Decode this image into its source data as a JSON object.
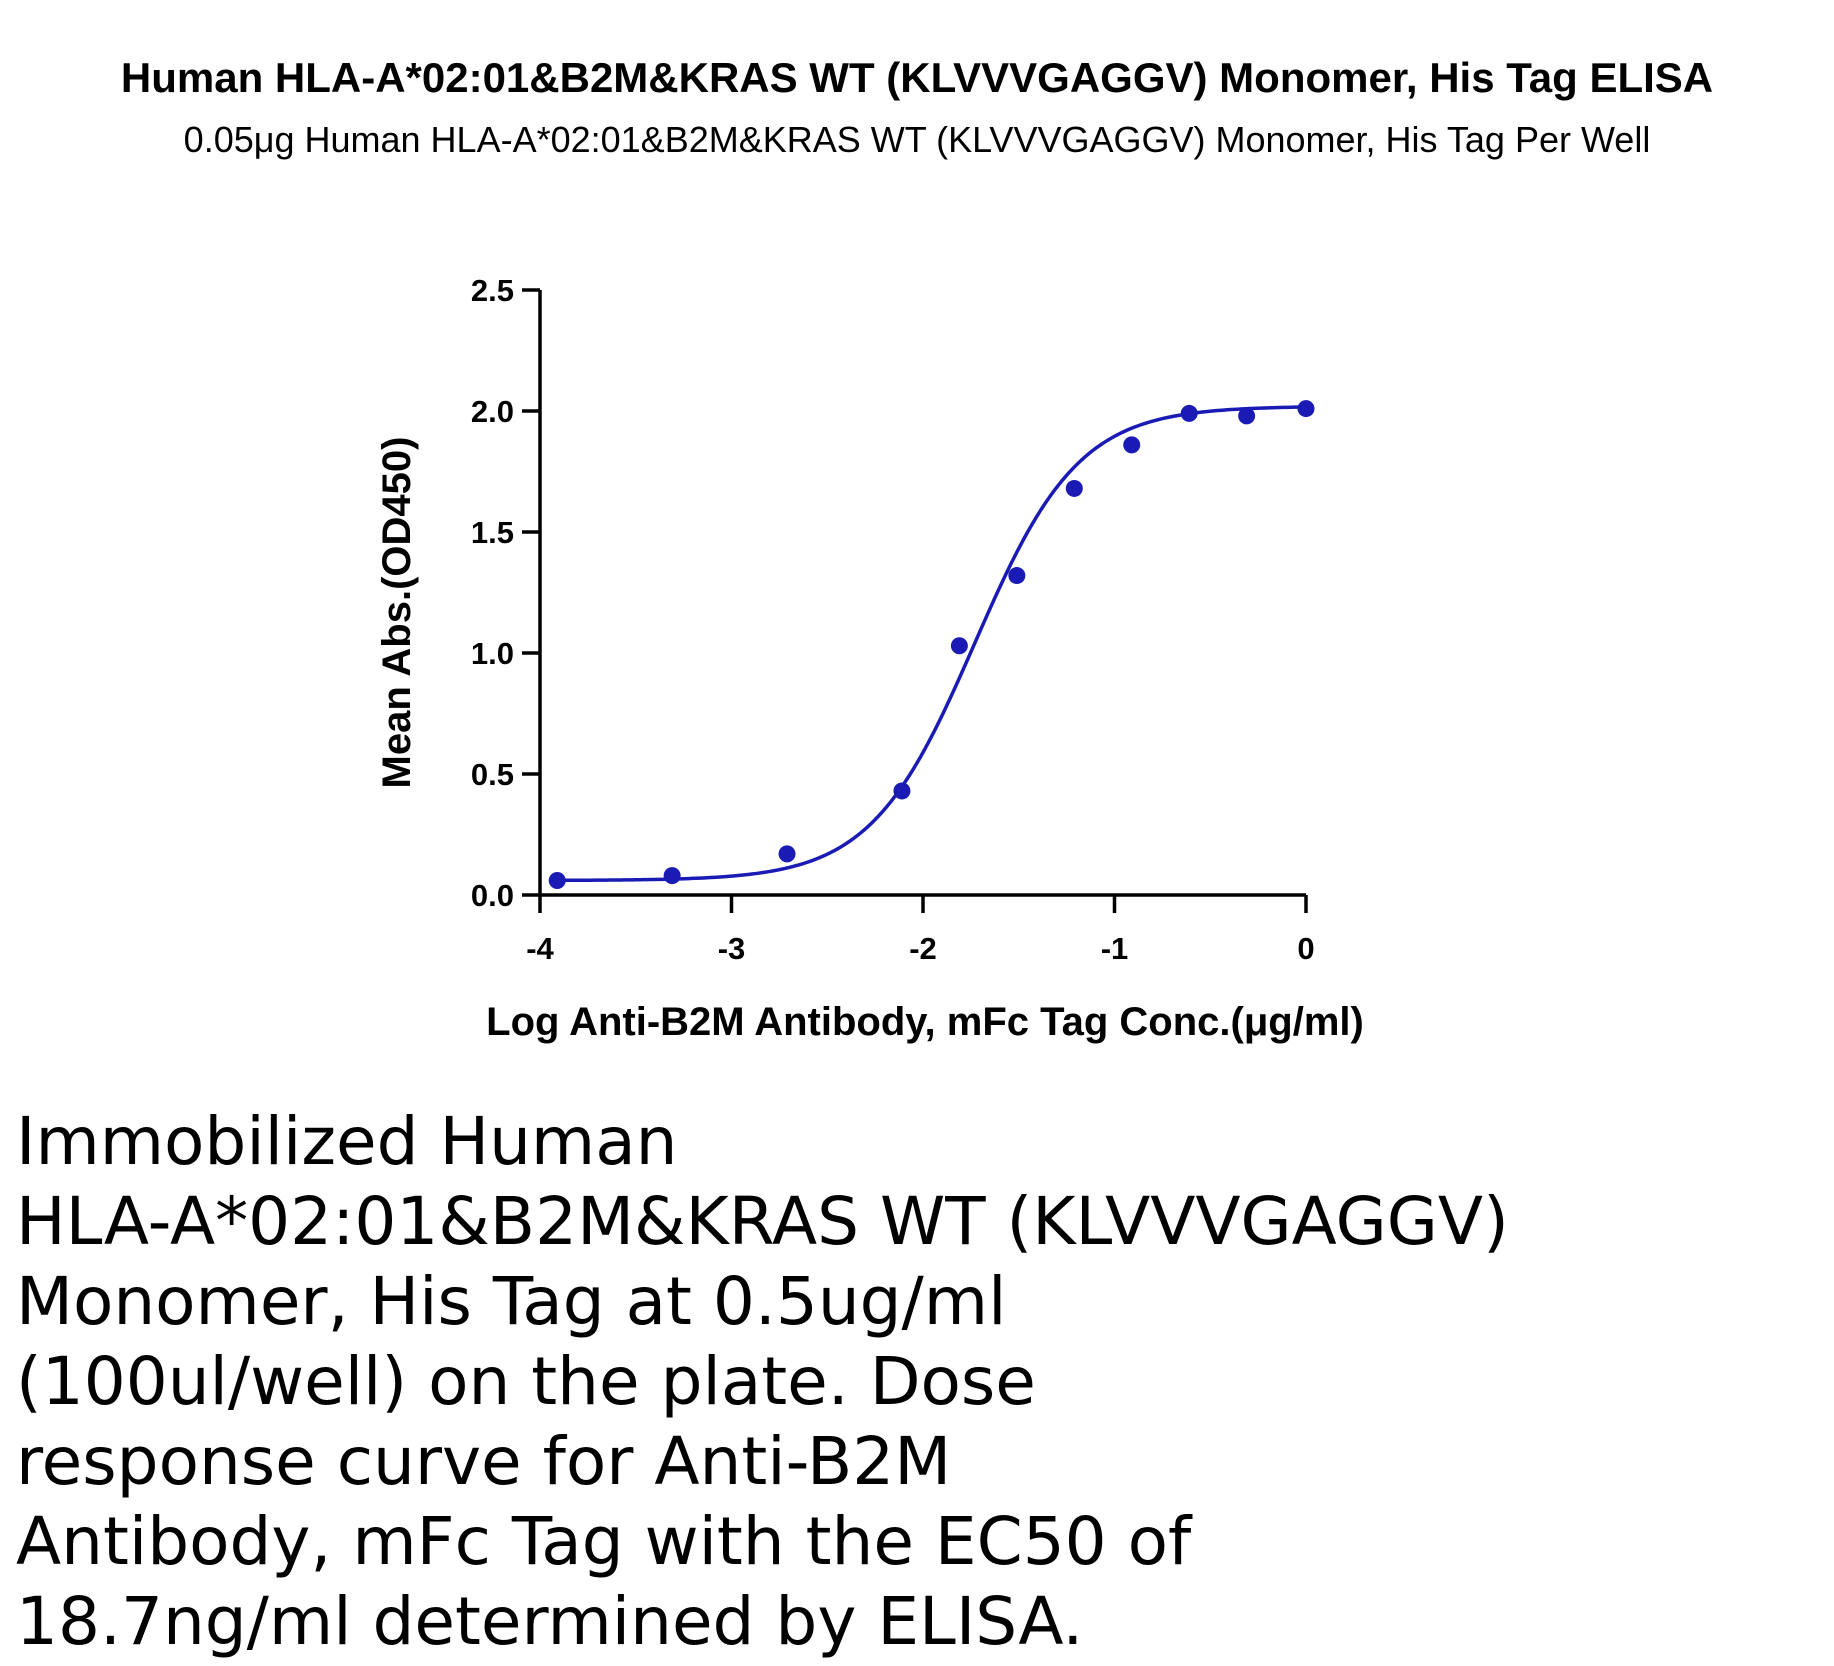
{
  "chart_data": {
    "type": "scatter",
    "title": "Human HLA-A*02:01&B2M&KRAS WT (KLVVVGAGGV) Monomer, His Tag ELISA",
    "subtitle": "0.05μg Human HLA-A*02:01&B2M&KRAS WT (KLVVVGAGGV) Monomer, His Tag Per Well",
    "xlabel": "Log Anti-B2M Antibody, mFc Tag Conc.(μg/ml)",
    "ylabel": "Mean Abs.(OD450)",
    "xlim": [
      -4,
      0
    ],
    "ylim": [
      0,
      2.5
    ],
    "x_ticks": [
      "-4",
      "-3",
      "-2",
      "-1",
      "0"
    ],
    "y_ticks": [
      "0.0",
      "0.5",
      "1.0",
      "1.5",
      "2.0",
      "2.5"
    ],
    "grid": false,
    "color": "#1a1ab4",
    "series": [
      {
        "x": [
          -3.91,
          -3.31,
          -2.71,
          -2.11,
          -1.81,
          -1.51,
          -1.21,
          -0.91,
          -0.61,
          -0.31,
          0.0
        ],
        "y": [
          0.06,
          0.08,
          0.17,
          0.43,
          1.03,
          1.32,
          1.68,
          1.86,
          1.99,
          1.98,
          2.01
        ]
      }
    ],
    "fit": {
      "model": "4PL",
      "bottom": 0.06,
      "top": 2.02,
      "logEC50": -1.73,
      "hill": 1.6
    }
  },
  "caption": "Immobilized Human\nHLA-A*02:01&B2M&KRAS WT (KLVVVGAGGV)\nMonomer, His Tag at 0.5ug/ml\n(100ul/well) on the plate. Dose\nresponse curve for Anti-B2M\nAntibody, mFc Tag with the EC50 of\n18.7ng/ml determined by ELISA."
}
